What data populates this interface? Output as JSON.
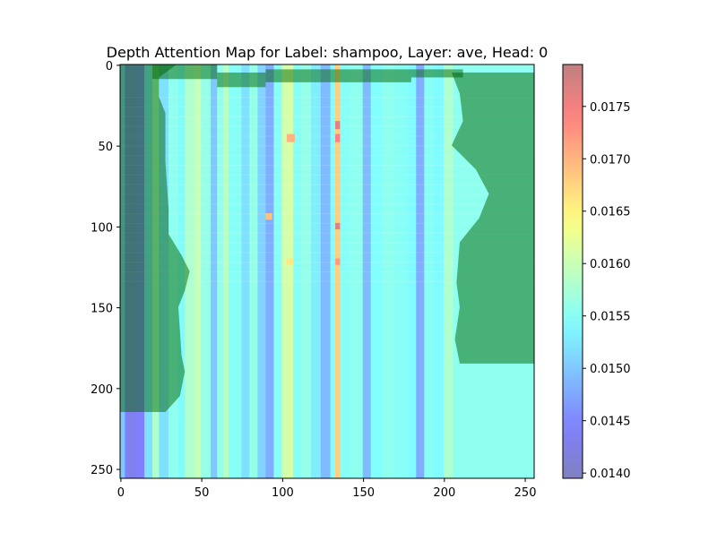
{
  "chart_data": {
    "type": "heatmap",
    "title": "Depth Attention Map for Label: shampoo, Layer: ave, Head: 0",
    "xlabel": "",
    "ylabel": "",
    "xlim": [
      0,
      255
    ],
    "ylim": [
      255,
      0
    ],
    "x_ticks": [
      0,
      50,
      100,
      150,
      200,
      250
    ],
    "y_ticks": [
      0,
      50,
      100,
      150,
      200,
      250
    ],
    "colorbar": {
      "colormap": "jet",
      "alpha": 0.5,
      "range": [
        0.01395,
        0.0179
      ],
      "ticks": [
        0.014,
        0.0145,
        0.015,
        0.0155,
        0.016,
        0.0165,
        0.017,
        0.0175
      ],
      "tick_labels": [
        "0.0140",
        "0.0145",
        "0.0150",
        "0.0155",
        "0.0160",
        "0.0165",
        "0.0170",
        "0.0175"
      ]
    },
    "column_profile": [
      {
        "x0": 0,
        "x1": 3,
        "value": 0.015
      },
      {
        "x0": 3,
        "x1": 5,
        "value": 0.0144
      },
      {
        "x0": 5,
        "x1": 10,
        "value": 0.0143
      },
      {
        "x0": 10,
        "x1": 15,
        "value": 0.01445
      },
      {
        "x0": 15,
        "x1": 20,
        "value": 0.0152
      },
      {
        "x0": 20,
        "x1": 24,
        "value": 0.0158
      },
      {
        "x0": 24,
        "x1": 30,
        "value": 0.0152
      },
      {
        "x0": 30,
        "x1": 36,
        "value": 0.01555
      },
      {
        "x0": 36,
        "x1": 40,
        "value": 0.0154
      },
      {
        "x0": 40,
        "x1": 46,
        "value": 0.0158
      },
      {
        "x0": 46,
        "x1": 50,
        "value": 0.016
      },
      {
        "x0": 50,
        "x1": 56,
        "value": 0.0156
      },
      {
        "x0": 56,
        "x1": 60,
        "value": 0.015
      },
      {
        "x0": 60,
        "x1": 64,
        "value": 0.0156
      },
      {
        "x0": 64,
        "x1": 67,
        "value": 0.0159
      },
      {
        "x0": 67,
        "x1": 75,
        "value": 0.0155
      },
      {
        "x0": 75,
        "x1": 80,
        "value": 0.0152
      },
      {
        "x0": 80,
        "x1": 85,
        "value": 0.0156
      },
      {
        "x0": 85,
        "x1": 90,
        "value": 0.0151
      },
      {
        "x0": 90,
        "x1": 95,
        "value": 0.0148
      },
      {
        "x0": 95,
        "x1": 100,
        "value": 0.0155
      },
      {
        "x0": 100,
        "x1": 107,
        "value": 0.0161
      },
      {
        "x0": 107,
        "x1": 112,
        "value": 0.0155
      },
      {
        "x0": 112,
        "x1": 118,
        "value": 0.0156
      },
      {
        "x0": 118,
        "x1": 124,
        "value": 0.0153
      },
      {
        "x0": 124,
        "x1": 130,
        "value": 0.0149
      },
      {
        "x0": 130,
        "x1": 133,
        "value": 0.01545
      },
      {
        "x0": 133,
        "x1": 136,
        "value": 0.0168
      },
      {
        "x0": 136,
        "x1": 142,
        "value": 0.0155
      },
      {
        "x0": 142,
        "x1": 150,
        "value": 0.01555
      },
      {
        "x0": 150,
        "x1": 155,
        "value": 0.0149
      },
      {
        "x0": 155,
        "x1": 162,
        "value": 0.01545
      },
      {
        "x0": 162,
        "x1": 170,
        "value": 0.01555
      },
      {
        "x0": 170,
        "x1": 178,
        "value": 0.0155
      },
      {
        "x0": 178,
        "x1": 183,
        "value": 0.0154
      },
      {
        "x0": 183,
        "x1": 188,
        "value": 0.0148
      },
      {
        "x0": 188,
        "x1": 194,
        "value": 0.0155
      },
      {
        "x0": 194,
        "x1": 200,
        "value": 0.0154
      },
      {
        "x0": 200,
        "x1": 206,
        "value": 0.0158
      },
      {
        "x0": 206,
        "x1": 212,
        "value": 0.01555
      },
      {
        "x0": 212,
        "x1": 256,
        "value": 0.01555
      }
    ],
    "hot_spots": [
      {
        "x0": 133,
        "x1": 136,
        "y0": 35,
        "y1": 40,
        "value": 0.0176
      },
      {
        "x0": 133,
        "x1": 136,
        "y0": 43,
        "y1": 48,
        "value": 0.0174
      },
      {
        "x0": 133,
        "x1": 136,
        "y0": 98,
        "y1": 102,
        "value": 0.0176
      },
      {
        "x0": 133,
        "x1": 136,
        "y0": 120,
        "y1": 124,
        "value": 0.0172
      },
      {
        "x0": 103,
        "x1": 108,
        "y0": 43,
        "y1": 48,
        "value": 0.017
      },
      {
        "x0": 90,
        "x1": 94,
        "y0": 92,
        "y1": 96,
        "value": 0.0169
      },
      {
        "x0": 103,
        "x1": 107,
        "y0": 120,
        "y1": 124,
        "value": 0.0166
      }
    ],
    "background_overlay": {
      "color": "#006400",
      "alpha": 0.5,
      "left_region": [
        {
          "y": 0,
          "x_end": 35
        },
        {
          "y": 8,
          "x_end": 24
        },
        {
          "y": 20,
          "x_end": 24
        },
        {
          "y": 30,
          "x_end": 28
        },
        {
          "y": 60,
          "x_end": 28
        },
        {
          "y": 90,
          "x_end": 30
        },
        {
          "y": 105,
          "x_end": 30
        },
        {
          "y": 118,
          "x_end": 38
        },
        {
          "y": 128,
          "x_end": 43
        },
        {
          "y": 140,
          "x_end": 40
        },
        {
          "y": 150,
          "x_end": 36
        },
        {
          "y": 165,
          "x_end": 37
        },
        {
          "y": 180,
          "x_end": 38
        },
        {
          "y": 190,
          "x_end": 40
        },
        {
          "y": 205,
          "x_end": 37
        },
        {
          "y": 215,
          "x_end": 28
        }
      ],
      "right_region": [
        {
          "y": 5,
          "x_start": 205
        },
        {
          "y": 18,
          "x_start": 210
        },
        {
          "y": 35,
          "x_start": 212
        },
        {
          "y": 50,
          "x_start": 205
        },
        {
          "y": 65,
          "x_start": 220
        },
        {
          "y": 80,
          "x_start": 228
        },
        {
          "y": 95,
          "x_start": 222
        },
        {
          "y": 110,
          "x_start": 210
        },
        {
          "y": 135,
          "x_start": 208
        },
        {
          "y": 150,
          "x_start": 210
        },
        {
          "y": 170,
          "x_start": 207
        },
        {
          "y": 185,
          "x_start": 210
        }
      ],
      "top_band": [
        {
          "x0": 20,
          "x1": 60,
          "y0": 0,
          "y1": 9
        },
        {
          "x0": 60,
          "x1": 90,
          "y0": 5,
          "y1": 14
        },
        {
          "x0": 90,
          "x1": 180,
          "y0": 3,
          "y1": 11
        },
        {
          "x0": 180,
          "x1": 212,
          "y0": 3,
          "y1": 8
        }
      ]
    }
  }
}
